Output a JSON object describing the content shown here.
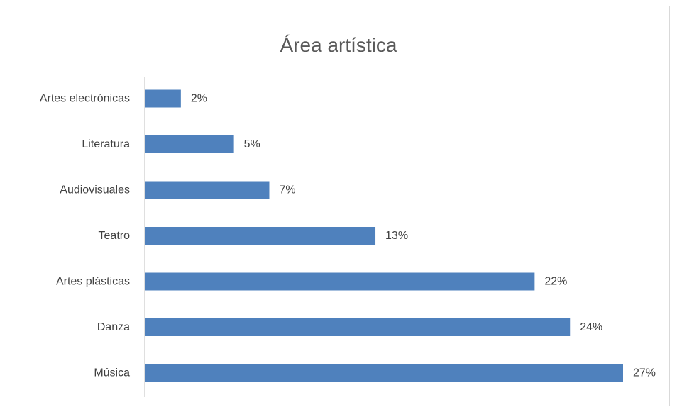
{
  "chart_data": {
    "type": "bar",
    "orientation": "horizontal",
    "title": "Área artística",
    "categories": [
      "Artes electrónicas",
      "Literatura",
      "Audiovisuales",
      "Teatro",
      "Artes plásticas",
      "Danza",
      "Música"
    ],
    "values": [
      2,
      5,
      7,
      13,
      22,
      24,
      27
    ],
    "value_labels": [
      "2%",
      "5%",
      "7%",
      "13%",
      "22%",
      "24%",
      "27%"
    ],
    "xlim": [
      0,
      27
    ],
    "grid": false,
    "legend": "none",
    "colors": {
      "bar": "#4f81bd",
      "axis": "#bfbfbf",
      "text": "#404040",
      "title": "#595959",
      "border": "#d9d9d9"
    }
  }
}
